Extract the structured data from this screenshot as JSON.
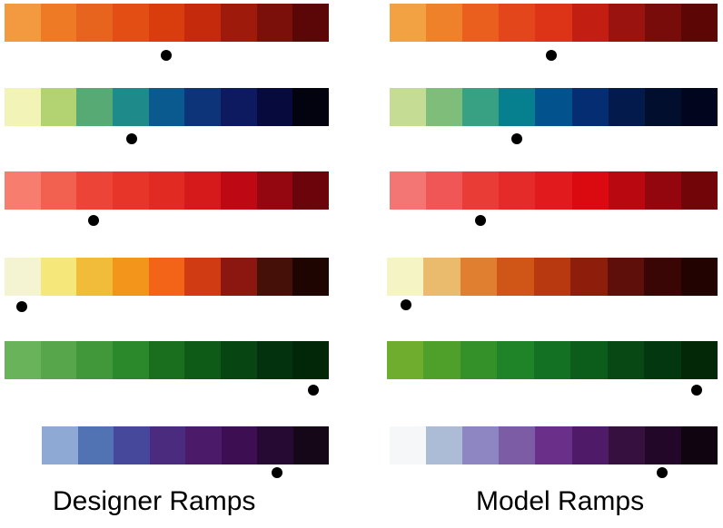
{
  "captions": {
    "designer": "Designer Ramps",
    "model": "Model Ramps"
  },
  "designer_ramps": [
    {
      "colors": [
        "#f39a41",
        "#ee7a25",
        "#e6641d",
        "#e24e13",
        "#d93c0d",
        "#c52a0d",
        "#9e1a0b",
        "#7b0f09",
        "#5b0707"
      ],
      "marker_index": 4.4
    },
    {
      "colors": [
        "#f2f3b7",
        "#b3d271",
        "#57aa74",
        "#1f8a8a",
        "#0a5a90",
        "#0d3479",
        "#0e1a5f",
        "#060a3d",
        "#02030f"
      ],
      "marker_index": 3.5
    },
    {
      "colors": [
        "#f77d6e",
        "#f26050",
        "#ec4537",
        "#e73529",
        "#e02a22",
        "#d6191a",
        "#be0813",
        "#940710",
        "#6c040c"
      ],
      "marker_index": 2.5
    },
    {
      "colors": [
        "#f4f4d2",
        "#f5e77a",
        "#f0bc3a",
        "#f3951a",
        "#f36418",
        "#d13b14",
        "#8c1710",
        "#451008",
        "#1e0502"
      ],
      "marker_index": 0.5
    },
    {
      "colors": [
        "#69b45a",
        "#57a64b",
        "#40983b",
        "#2b892c",
        "#1a6f1e",
        "#0d5b16",
        "#074512",
        "#03330e",
        "#022608"
      ],
      "marker_index": 8.5
    },
    {
      "colors": [
        "#8ea9d4",
        "#5273b3",
        "#46489b",
        "#4b2b7d",
        "#4b1a68",
        "#3e0e52",
        "#270a34",
        "#150618"
      ],
      "marker_index": 6.5
    }
  ],
  "model_ramps": [
    {
      "colors": [
        "#f2a242",
        "#ef812a",
        "#ea5f1d",
        "#e3461a",
        "#dd3316",
        "#c21f12",
        "#9b130f",
        "#780c0b",
        "#5c0606"
      ],
      "marker_index": 4.4
    },
    {
      "colors": [
        "#c4dc93",
        "#7fbd7a",
        "#38a083",
        "#067f8f",
        "#02538d",
        "#052d71",
        "#031a4c",
        "#020e2e",
        "#01051d"
      ],
      "marker_index": 3.5
    },
    {
      "colors": [
        "#f37574",
        "#ef5655",
        "#ea3c36",
        "#e52a2a",
        "#e01a1d",
        "#da0a10",
        "#ba0811",
        "#93060d",
        "#710508"
      ],
      "marker_index": 2.5
    },
    {
      "colors": [
        "#f4f4c4",
        "#ebbb6d",
        "#e07f30",
        "#cf5616",
        "#b83810",
        "#8e1e0b",
        "#5f0f09",
        "#3a0605",
        "#220302"
      ],
      "marker_index": 0.5
    },
    {
      "colors": [
        "#6ead2e",
        "#4f9f2b",
        "#349129",
        "#1f8427",
        "#127122",
        "#0c5d1b",
        "#074814",
        "#03370f",
        "#022808"
      ],
      "marker_index": 8.5
    },
    {
      "colors": [
        "#f6f7f8",
        "#acbbd6",
        "#8d86c2",
        "#7d5ca6",
        "#692f89",
        "#4f1a68",
        "#36103f",
        "#220728",
        "#100410"
      ],
      "marker_index": 7.5
    }
  ]
}
